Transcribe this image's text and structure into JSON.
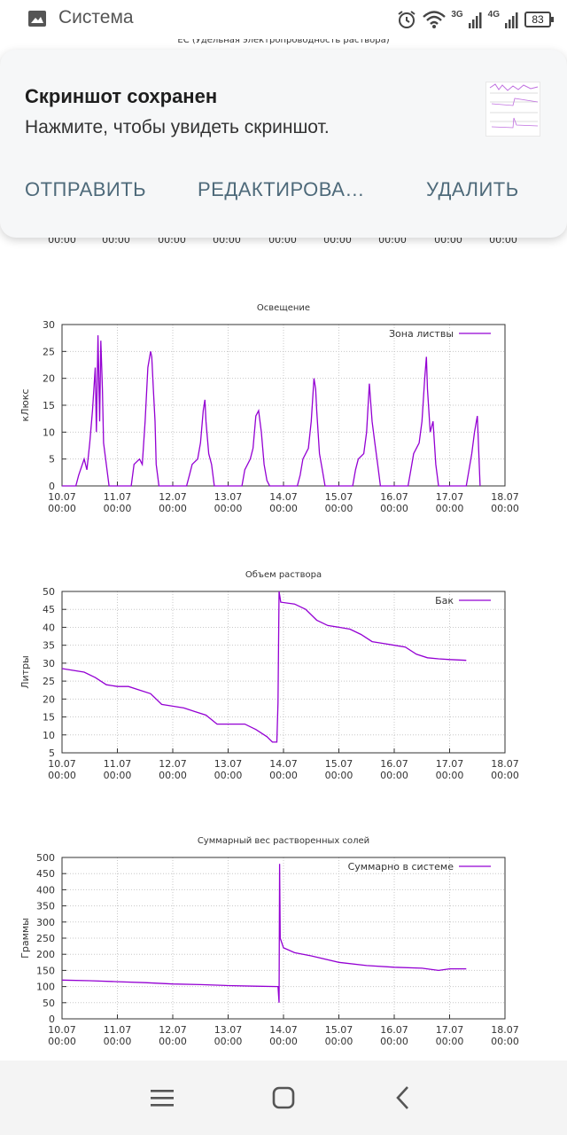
{
  "status_bar": {
    "app_name": "Система",
    "network": [
      "3G",
      "4G"
    ],
    "battery": "83",
    "icons": [
      "gallery-icon",
      "alarm-icon",
      "wifi-icon",
      "signal-icon",
      "battery-icon"
    ]
  },
  "page": {
    "top_title": "EC (Удельная электропроводность раствора)",
    "ghost_ticks": [
      "00:00",
      "00:00",
      "00:00",
      "00:00",
      "00:00",
      "00:00",
      "00:00",
      "00:00",
      "00:00"
    ]
  },
  "notification": {
    "title": "Скриншот сохранен",
    "text": "Нажмите, чтобы увидеть скриншот.",
    "actions": {
      "share": "ОТПРАВИТЬ",
      "edit": "РЕДАКТИРОВА…",
      "delete": "УДАЛИТЬ"
    }
  },
  "nav_bar": {
    "icons": [
      "menu-icon",
      "home-icon",
      "back-icon"
    ]
  },
  "chart_data": [
    {
      "type": "line",
      "title": "Освещение",
      "ylabel": "кЛюкс",
      "xlabel": "",
      "ylim": [
        0,
        30
      ],
      "yticks": [
        0,
        5,
        10,
        15,
        20,
        25,
        30
      ],
      "xticks": [
        [
          "10.07",
          "00:00"
        ],
        [
          "11.07",
          "00:00"
        ],
        [
          "12.07",
          "00:00"
        ],
        [
          "13.07",
          "00:00"
        ],
        [
          "14.07",
          "00:00"
        ],
        [
          "15.07",
          "00:00"
        ],
        [
          "16.07",
          "00:00"
        ],
        [
          "17.07",
          "00:00"
        ],
        [
          "18.07",
          "00:00"
        ]
      ],
      "grid": true,
      "legend": "top-right",
      "series": [
        {
          "name": "Зона листвы",
          "color": "#9400d3",
          "points": [
            [
              0,
              0
            ],
            [
              0.25,
              0
            ],
            [
              0.3,
              2
            ],
            [
              0.4,
              5
            ],
            [
              0.45,
              3
            ],
            [
              0.5,
              8
            ],
            [
              0.55,
              14
            ],
            [
              0.6,
              22
            ],
            [
              0.62,
              10
            ],
            [
              0.65,
              28
            ],
            [
              0.68,
              12
            ],
            [
              0.7,
              27
            ],
            [
              0.73,
              18
            ],
            [
              0.75,
              8
            ],
            [
              0.8,
              4
            ],
            [
              0.85,
              0
            ],
            [
              1.25,
              0
            ],
            [
              1.3,
              4
            ],
            [
              1.4,
              5
            ],
            [
              1.45,
              4
            ],
            [
              1.5,
              12
            ],
            [
              1.55,
              22
            ],
            [
              1.6,
              25
            ],
            [
              1.62,
              24
            ],
            [
              1.65,
              18
            ],
            [
              1.68,
              12
            ],
            [
              1.7,
              4
            ],
            [
              1.75,
              0
            ],
            [
              2.25,
              0
            ],
            [
              2.3,
              2
            ],
            [
              2.35,
              4
            ],
            [
              2.45,
              5
            ],
            [
              2.5,
              8
            ],
            [
              2.55,
              14
            ],
            [
              2.58,
              16
            ],
            [
              2.6,
              12
            ],
            [
              2.65,
              6
            ],
            [
              2.7,
              4
            ],
            [
              2.75,
              0
            ],
            [
              3.25,
              0
            ],
            [
              3.3,
              3
            ],
            [
              3.4,
              5
            ],
            [
              3.45,
              7
            ],
            [
              3.5,
              13
            ],
            [
              3.55,
              14
            ],
            [
              3.6,
              10
            ],
            [
              3.65,
              4
            ],
            [
              3.7,
              1
            ],
            [
              3.75,
              0
            ],
            [
              4.25,
              0
            ],
            [
              4.3,
              2
            ],
            [
              4.35,
              5
            ],
            [
              4.45,
              7
            ],
            [
              4.5,
              12
            ],
            [
              4.55,
              20
            ],
            [
              4.58,
              18
            ],
            [
              4.6,
              14
            ],
            [
              4.65,
              6
            ],
            [
              4.7,
              3
            ],
            [
              4.75,
              0
            ],
            [
              5.25,
              0
            ],
            [
              5.3,
              3
            ],
            [
              5.35,
              5
            ],
            [
              5.45,
              6
            ],
            [
              5.5,
              10
            ],
            [
              5.55,
              19
            ],
            [
              5.6,
              12
            ],
            [
              5.65,
              8
            ],
            [
              5.7,
              4
            ],
            [
              5.75,
              0
            ],
            [
              6.25,
              0
            ],
            [
              6.3,
              3
            ],
            [
              6.35,
              6
            ],
            [
              6.45,
              8
            ],
            [
              6.5,
              12
            ],
            [
              6.55,
              20
            ],
            [
              6.58,
              24
            ],
            [
              6.6,
              18
            ],
            [
              6.65,
              10
            ],
            [
              6.7,
              12
            ],
            [
              6.75,
              4
            ],
            [
              6.8,
              0
            ],
            [
              7.3,
              0
            ],
            [
              7.35,
              3
            ],
            [
              7.4,
              6
            ],
            [
              7.45,
              10
            ],
            [
              7.5,
              13
            ],
            [
              7.55,
              0
            ]
          ]
        }
      ]
    },
    {
      "type": "line",
      "title": "Объем раствора",
      "ylabel": "Литры",
      "xlabel": "",
      "ylim": [
        5,
        50
      ],
      "yticks": [
        5,
        10,
        15,
        20,
        25,
        30,
        35,
        40,
        45,
        50
      ],
      "xticks": [
        [
          "10.07",
          "00:00"
        ],
        [
          "11.07",
          "00:00"
        ],
        [
          "12.07",
          "00:00"
        ],
        [
          "13.07",
          "00:00"
        ],
        [
          "14.07",
          "00:00"
        ],
        [
          "15.07",
          "00:00"
        ],
        [
          "16.07",
          "00:00"
        ],
        [
          "17.07",
          "00:00"
        ],
        [
          "18.07",
          "00:00"
        ]
      ],
      "grid": true,
      "legend": "top-right",
      "series": [
        {
          "name": "Бак",
          "color": "#9400d3",
          "points": [
            [
              0,
              28.5
            ],
            [
              0.4,
              27.5
            ],
            [
              0.6,
              26
            ],
            [
              0.8,
              24
            ],
            [
              1.0,
              23.5
            ],
            [
              1.2,
              23.5
            ],
            [
              1.4,
              22.5
            ],
            [
              1.6,
              21.5
            ],
            [
              1.8,
              18.5
            ],
            [
              2.0,
              18
            ],
            [
              2.2,
              17.5
            ],
            [
              2.4,
              16.5
            ],
            [
              2.6,
              15.5
            ],
            [
              2.8,
              13
            ],
            [
              3.0,
              13
            ],
            [
              3.3,
              13
            ],
            [
              3.5,
              11.5
            ],
            [
              3.7,
              9.5
            ],
            [
              3.8,
              8
            ],
            [
              3.88,
              8
            ],
            [
              3.9,
              19
            ],
            [
              3.92,
              50
            ],
            [
              3.95,
              47
            ],
            [
              4.2,
              46.5
            ],
            [
              4.4,
              45
            ],
            [
              4.6,
              42
            ],
            [
              4.8,
              40.5
            ],
            [
              5.0,
              40
            ],
            [
              5.2,
              39.5
            ],
            [
              5.4,
              38
            ],
            [
              5.6,
              36
            ],
            [
              5.8,
              35.5
            ],
            [
              6.0,
              35
            ],
            [
              6.2,
              34.5
            ],
            [
              6.4,
              32.5
            ],
            [
              6.6,
              31.5
            ],
            [
              6.8,
              31.2
            ],
            [
              7.0,
              31
            ],
            [
              7.3,
              30.8
            ]
          ]
        }
      ]
    },
    {
      "type": "line",
      "title": "Суммарный вес растворенных солей",
      "ylabel": "Граммы",
      "xlabel": "",
      "ylim": [
        0,
        500
      ],
      "yticks": [
        0,
        50,
        100,
        150,
        200,
        250,
        300,
        350,
        400,
        450,
        500
      ],
      "xticks": [
        [
          "10.07",
          "00:00"
        ],
        [
          "11.07",
          "00:00"
        ],
        [
          "12.07",
          "00:00"
        ],
        [
          "13.07",
          "00:00"
        ],
        [
          "14.07",
          "00:00"
        ],
        [
          "15.07",
          "00:00"
        ],
        [
          "16.07",
          "00:00"
        ],
        [
          "17.07",
          "00:00"
        ],
        [
          "18.07",
          "00:00"
        ]
      ],
      "grid": true,
      "legend": "top-right",
      "series": [
        {
          "name": "Суммарно в системе",
          "color": "#9400d3",
          "points": [
            [
              0,
              120
            ],
            [
              0.5,
              118
            ],
            [
              1.0,
              115
            ],
            [
              1.5,
              112
            ],
            [
              2.0,
              108
            ],
            [
              2.5,
              106
            ],
            [
              3.0,
              103
            ],
            [
              3.5,
              101
            ],
            [
              3.9,
              100
            ],
            [
              3.92,
              50
            ],
            [
              3.93,
              480
            ],
            [
              3.94,
              250
            ],
            [
              4.0,
              220
            ],
            [
              4.2,
              205
            ],
            [
              4.5,
              195
            ],
            [
              5.0,
              175
            ],
            [
              5.5,
              165
            ],
            [
              6.0,
              160
            ],
            [
              6.5,
              157
            ],
            [
              6.8,
              150
            ],
            [
              7.0,
              155
            ],
            [
              7.3,
              155
            ]
          ]
        }
      ]
    }
  ]
}
